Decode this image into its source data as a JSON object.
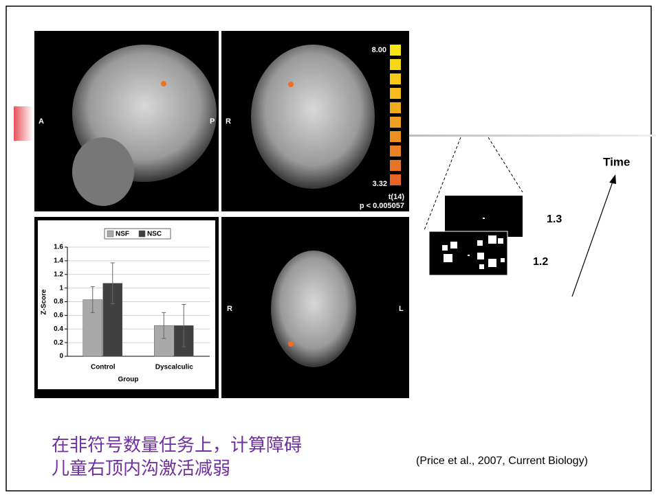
{
  "panel_labels": {
    "sagittal_left": "A",
    "sagittal_right": "P",
    "coronal_left": "R",
    "axial_left": "R",
    "axial_right": "L"
  },
  "colorbar": {
    "max": "8.00",
    "min": "3.32",
    "stat": "t(14)",
    "threshold": "p < 0.005057"
  },
  "chart_data": {
    "type": "bar",
    "categories": [
      "Control",
      "Dyscalculic"
    ],
    "series": [
      {
        "name": "NSF",
        "color": "#a9a9a9",
        "values": [
          0.83,
          0.45
        ],
        "errors": [
          0.19,
          0.19
        ]
      },
      {
        "name": "NSC",
        "color": "#404040",
        "values": [
          1.07,
          0.45
        ],
        "errors": [
          0.3,
          0.31
        ]
      }
    ],
    "xlabel": "Group",
    "ylabel": "Z-Score",
    "ylim": [
      0,
      1.6
    ],
    "yticks": [
      0,
      0.2,
      0.4,
      0.6,
      0.8,
      1,
      1.2,
      1.4,
      1.6
    ],
    "grid": true,
    "legend": "top"
  },
  "stimulus": {
    "back_duration": "1.3",
    "front_duration": "1.2",
    "time_label": "Time"
  },
  "caption": [
    "在非符号数量任务上，计算障碍",
    "儿童右顶内沟激活减弱"
  ],
  "citation": "(Price et al., 2007, Current Biology)"
}
